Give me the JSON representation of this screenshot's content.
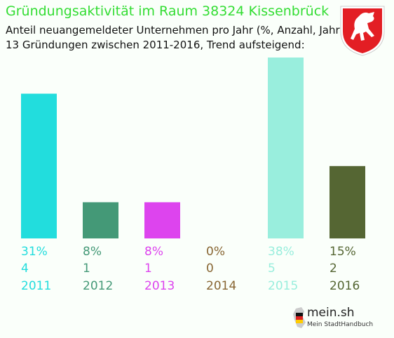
{
  "title": "Gründungsaktivität im Raum 38324 Kissenbrück",
  "subtitle_line1": "Anteil neuangemeldeter Unternehmen pro Jahr (%, Anzahl, Jahr)",
  "subtitle_line2": "13 Gründungen zwischen 2011-2016, Trend aufsteigend:",
  "logo": {
    "name": "mein.sh",
    "tagline": "Mein StadtHandbuch"
  },
  "chart_data": {
    "type": "bar",
    "categories": [
      "2011",
      "2012",
      "2013",
      "2014",
      "2015",
      "2016"
    ],
    "percent_labels": [
      "31%",
      "8%",
      "8%",
      "0%",
      "38%",
      "15%"
    ],
    "values": [
      4,
      1,
      1,
      0,
      5,
      2
    ],
    "colors": [
      "#22dddd",
      "#449977",
      "#dd44ee",
      "#886633",
      "#99eedd",
      "#556633"
    ],
    "ylim": [
      0,
      5
    ]
  }
}
